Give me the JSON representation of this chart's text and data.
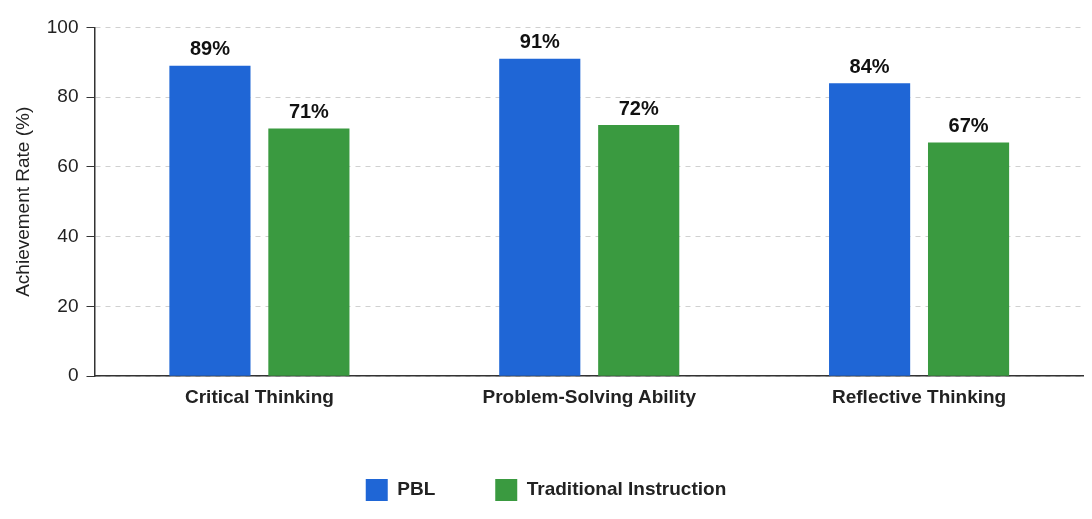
{
  "chart_data": {
    "type": "bar",
    "ylabel": "Achievement Rate (%)",
    "categories": [
      "Critical Thinking",
      "Problem-Solving Ability",
      "Reflective Thinking"
    ],
    "series": [
      {
        "name": "PBL",
        "color": "#1f66d6",
        "values": [
          89,
          91,
          84
        ],
        "value_labels": [
          "89%",
          "91%",
          "84%"
        ]
      },
      {
        "name": "Traditional Instruction",
        "color": "#3a9a40",
        "values": [
          71,
          72,
          67
        ],
        "value_labels": [
          "71%",
          "72%",
          "67%"
        ]
      }
    ],
    "ylim": [
      0,
      100
    ],
    "yticks": [
      0,
      20,
      40,
      60,
      80,
      100
    ],
    "grid": "y",
    "legend": "bottom"
  }
}
